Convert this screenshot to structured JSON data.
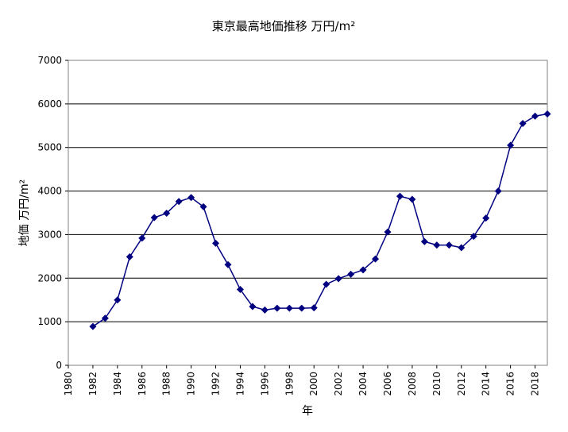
{
  "chart_data": {
    "type": "line",
    "title": "東京最高地価推移 万円/m²",
    "xlabel": "年",
    "ylabel": "地価 万円/m²",
    "ylim": [
      0,
      7000
    ],
    "yticks": [
      0,
      1000,
      2000,
      3000,
      4000,
      5000,
      6000,
      7000
    ],
    "xlim": [
      1980,
      2019
    ],
    "xticks": [
      "1980",
      "1982",
      "1984",
      "1986",
      "1988",
      "1990",
      "1992",
      "1994",
      "1996",
      "1998",
      "2000",
      "2002",
      "2004",
      "2006",
      "2008",
      "2010",
      "2012",
      "2014",
      "2016",
      "2018"
    ],
    "grid": "horizontal",
    "legend": "none",
    "series_color": "#000080",
    "series": [
      {
        "x": [
          1982,
          1983,
          1984,
          1985,
          1986,
          1987,
          1988,
          1989,
          1990,
          1991,
          1992,
          1993,
          1994,
          1995,
          1996,
          1997,
          1998,
          1999,
          2000,
          2001,
          2002,
          2003,
          2004,
          2005,
          2006,
          2007,
          2008,
          2009,
          2010,
          2011,
          2012,
          2013,
          2014,
          2015,
          2016,
          2017,
          2018,
          2019
        ],
        "values": [
          890,
          1080,
          1500,
          2490,
          2920,
          3390,
          3490,
          3760,
          3850,
          3640,
          2800,
          2310,
          1740,
          1350,
          1270,
          1310,
          1310,
          1310,
          1320,
          1860,
          1990,
          2090,
          2190,
          2440,
          3060,
          3880,
          3810,
          2840,
          2760,
          2760,
          2700,
          2960,
          3380,
          4000,
          5050,
          5550,
          5720,
          5770
        ]
      }
    ]
  }
}
